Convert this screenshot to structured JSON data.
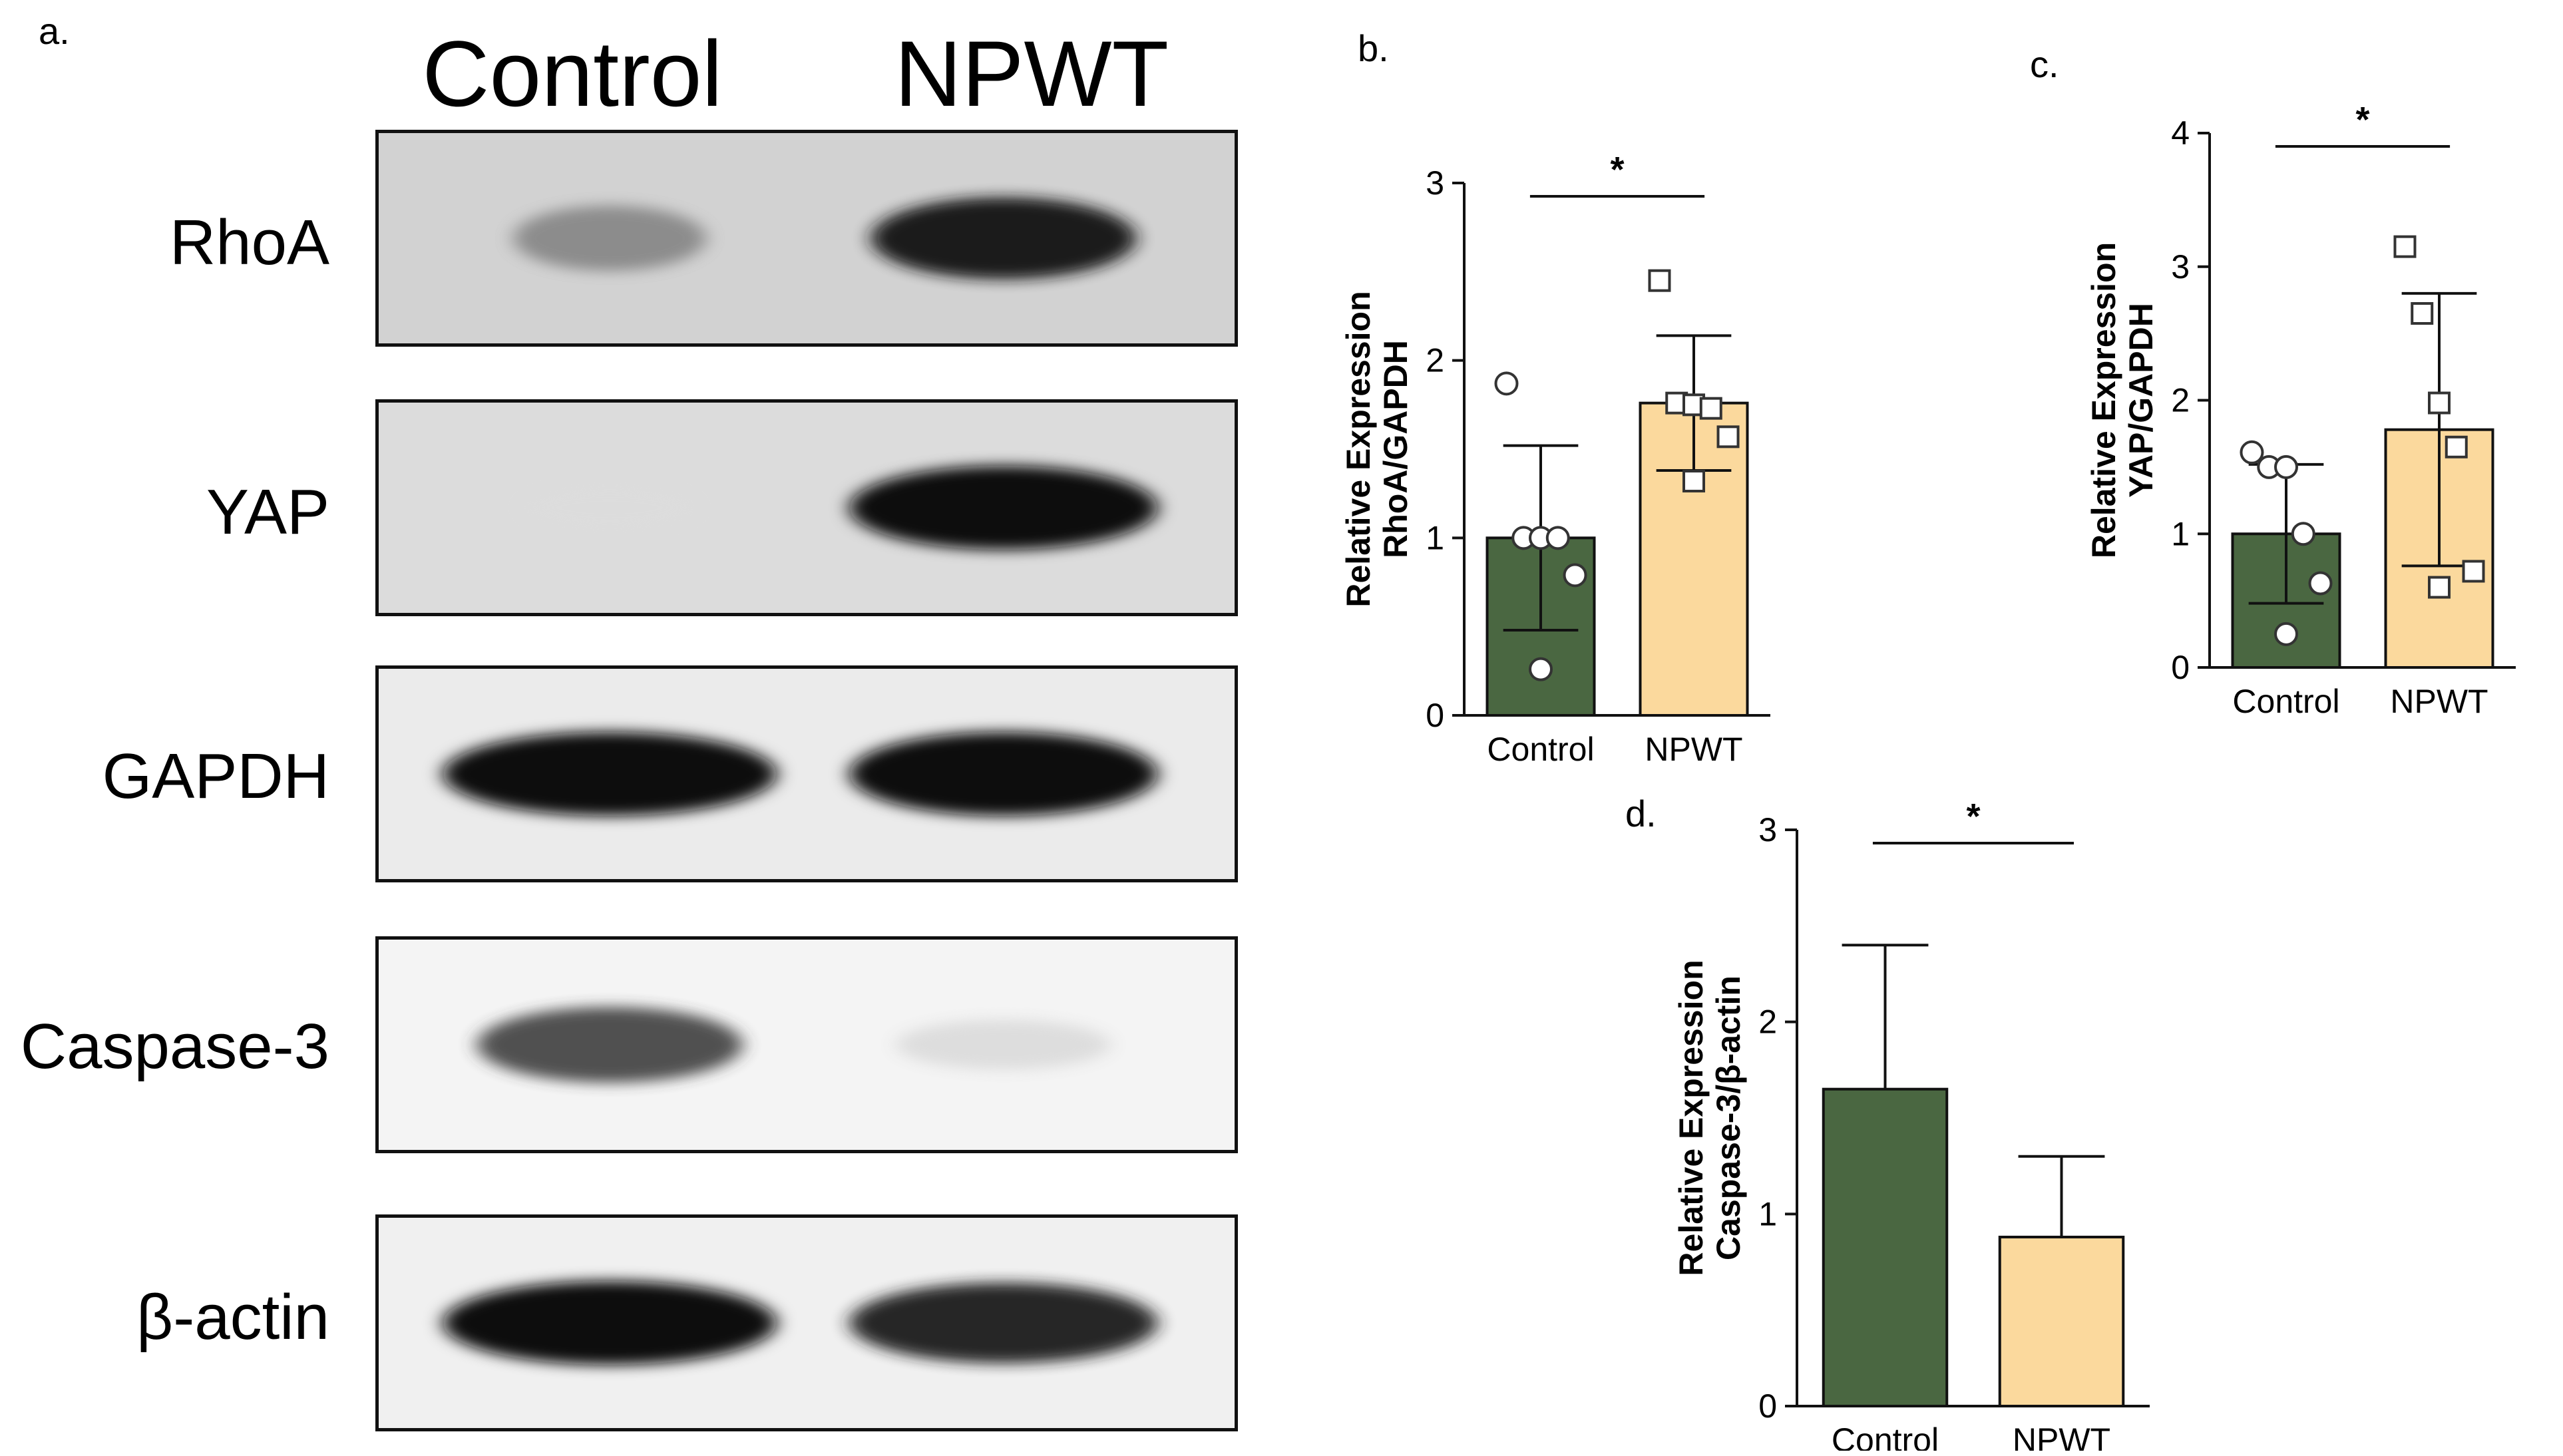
{
  "panel_letters": {
    "a": "a.",
    "b": "b.",
    "c": "c.",
    "d": "d."
  },
  "western_blot": {
    "columns": [
      "Control",
      "NPWT"
    ],
    "rows": [
      {
        "label": "RhoA",
        "background": "#d2d2d2",
        "bands": [
          {
            "darkness": 0.55,
            "width": 0.45
          },
          {
            "darkness": 0.95,
            "width": 0.62
          }
        ]
      },
      {
        "label": "YAP",
        "background": "#dcdcdc",
        "bands": [
          {
            "darkness": 0.06,
            "width": 0.4
          },
          {
            "darkness": 1.0,
            "width": 0.72
          }
        ]
      },
      {
        "label": "GAPDH",
        "background": "#ebebeb",
        "bands": [
          {
            "darkness": 1.0,
            "width": 0.78
          },
          {
            "darkness": 1.0,
            "width": 0.72
          }
        ]
      },
      {
        "label": "Caspase-3",
        "background": "#f4f4f4",
        "bands": [
          {
            "darkness": 0.8,
            "width": 0.62
          },
          {
            "darkness": 0.18,
            "width": 0.5
          }
        ]
      },
      {
        "label": "β-actin",
        "background": "#f0f0f0",
        "bands": [
          {
            "darkness": 1.0,
            "width": 0.78
          },
          {
            "darkness": 0.92,
            "width": 0.72
          }
        ]
      }
    ]
  },
  "colors": {
    "control": "#4a6741",
    "npwt": "#fbd99d",
    "outline": "#111111"
  },
  "chart_data": [
    {
      "panel": "b",
      "type": "bar",
      "categories": [
        "Control",
        "NPWT"
      ],
      "values": [
        1.0,
        1.76
      ],
      "error": [
        0.52,
        0.38
      ],
      "points": [
        [
          1.87,
          1.0,
          1.0,
          1.0,
          0.79,
          0.26
        ],
        [
          2.45,
          1.76,
          1.75,
          1.73,
          1.57,
          1.32
        ]
      ],
      "markers": [
        "circle",
        "square"
      ],
      "ylabel": [
        "Relative Expression",
        "RhoA/GAPDH"
      ],
      "ylim": [
        0,
        3
      ],
      "yticks": [
        0,
        1,
        2,
        3
      ],
      "significance": "*"
    },
    {
      "panel": "c",
      "type": "bar",
      "categories": [
        "Control",
        "NPWT"
      ],
      "values": [
        1.0,
        1.78
      ],
      "error": [
        0.52,
        1.02
      ],
      "points": [
        [
          1.61,
          1.5,
          1.5,
          1.0,
          0.63,
          0.25
        ],
        [
          3.15,
          2.65,
          1.98,
          1.65,
          0.72,
          0.6
        ]
      ],
      "markers": [
        "circle",
        "square"
      ],
      "ylabel": [
        "Relative Expression",
        "YAP/GAPDH"
      ],
      "ylim": [
        0,
        4
      ],
      "yticks": [
        0,
        1,
        2,
        3,
        4
      ],
      "significance": "*"
    },
    {
      "panel": "d",
      "type": "bar",
      "categories": [
        "Control",
        "NPWT"
      ],
      "values": [
        1.65,
        0.88
      ],
      "error": [
        0.75,
        0.42
      ],
      "points": [
        [],
        []
      ],
      "markers": [
        null,
        null
      ],
      "ylabel": [
        "Relative Expression",
        "Caspase-3/β-actin"
      ],
      "ylim": [
        0,
        3
      ],
      "yticks": [
        0,
        1,
        2,
        3
      ],
      "significance": "*"
    }
  ]
}
